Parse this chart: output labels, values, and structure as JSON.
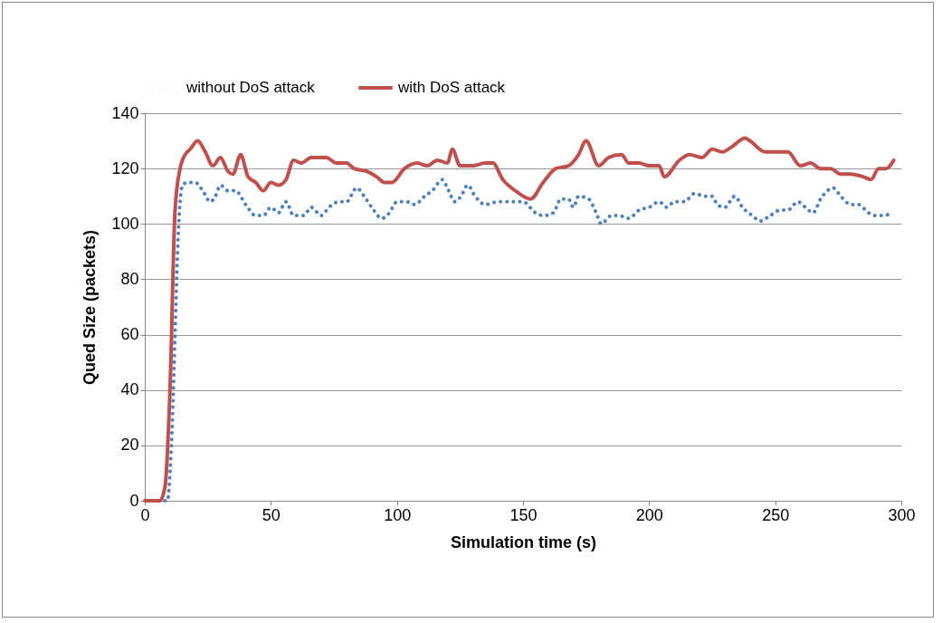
{
  "chart_data": {
    "type": "line",
    "xlabel": "Simulation time (s)",
    "ylabel": "Qued Size (packets)",
    "xlim": [
      0,
      300
    ],
    "xticks": [
      0,
      50,
      100,
      150,
      200,
      250,
      300
    ],
    "ylim": [
      0,
      140
    ],
    "yticks": [
      0,
      20,
      40,
      60,
      80,
      100,
      120,
      140
    ],
    "grid": "y",
    "legend": "top",
    "marker": "none",
    "series": [
      {
        "name": "without DoS attack",
        "color": "#4f81bd",
        "line_style": "dotted",
        "x": [
          8,
          9,
          10,
          11,
          12,
          13,
          14,
          15,
          17,
          20,
          23,
          26,
          28,
          30,
          33,
          36,
          40,
          44,
          47,
          50,
          53,
          56,
          59,
          63,
          66,
          70,
          73,
          77,
          80,
          84,
          87,
          90,
          94,
          97,
          100,
          104,
          107,
          111,
          114,
          118,
          120,
          123,
          126,
          128,
          131,
          135,
          140,
          146,
          150,
          155,
          158,
          162,
          165,
          168,
          170,
          172,
          176,
          179,
          181,
          185,
          188,
          192,
          196,
          200,
          204,
          207,
          210,
          214,
          218,
          222,
          225,
          227,
          230,
          234,
          237,
          241,
          244,
          248,
          252,
          255,
          259,
          262,
          265,
          268,
          273,
          276,
          280,
          283,
          287,
          290,
          293,
          296
        ],
        "values": [
          0,
          0,
          10,
          30,
          60,
          90,
          108,
          114,
          115,
          115,
          112,
          108,
          110,
          114,
          112,
          112,
          107,
          103,
          103,
          106,
          104,
          108,
          103,
          103,
          106,
          103,
          106,
          108,
          108,
          113,
          110,
          106,
          102,
          104,
          108,
          108,
          107,
          110,
          112,
          116,
          113,
          108,
          111,
          114,
          110,
          107,
          108,
          108,
          108,
          104,
          103,
          104,
          109,
          109,
          106,
          110,
          109,
          104,
          100,
          103,
          103,
          102,
          105,
          106,
          108,
          106,
          108,
          108,
          111,
          110,
          110,
          107,
          106,
          110,
          106,
          103,
          101,
          103,
          105,
          105,
          108,
          106,
          104,
          109,
          113,
          110,
          107,
          107,
          104,
          103,
          103,
          104
        ]
      },
      {
        "name": "with DoS attack",
        "color": "#c0504d",
        "line_style": "solid",
        "x": [
          0,
          3,
          6,
          8,
          10,
          12,
          14,
          16,
          18,
          21,
          24,
          27,
          30,
          33,
          35,
          38,
          41,
          44,
          47,
          50,
          53,
          56,
          59,
          62,
          66,
          72,
          76,
          80,
          83,
          88,
          92,
          95,
          98,
          103,
          108,
          112,
          116,
          120,
          122,
          125,
          130,
          135,
          138,
          142,
          147,
          153,
          158,
          163,
          168,
          172,
          175,
          180,
          184,
          189,
          192,
          196,
          200,
          204,
          206,
          212,
          216,
          221,
          225,
          229,
          233,
          238,
          240,
          246,
          251,
          255,
          260,
          264,
          268,
          272,
          276,
          280,
          285,
          288,
          291,
          294,
          297
        ],
        "values": [
          0,
          0,
          0,
          5,
          40,
          105,
          120,
          125,
          127,
          130,
          126,
          121,
          124,
          119,
          118,
          125,
          117,
          115,
          112,
          115,
          114,
          116,
          123,
          122,
          124,
          124,
          122,
          122,
          120,
          119,
          117,
          115,
          115,
          120,
          122,
          121,
          123,
          122,
          127,
          121,
          121,
          122,
          122,
          116,
          112,
          109,
          115,
          120,
          121,
          125,
          130,
          121,
          124,
          125,
          122,
          122,
          121,
          121,
          117,
          123,
          125,
          124,
          127,
          126,
          128,
          131,
          130,
          126,
          126,
          126,
          121,
          122,
          120,
          120,
          118,
          118,
          117,
          116,
          120,
          120,
          123
        ]
      }
    ]
  }
}
